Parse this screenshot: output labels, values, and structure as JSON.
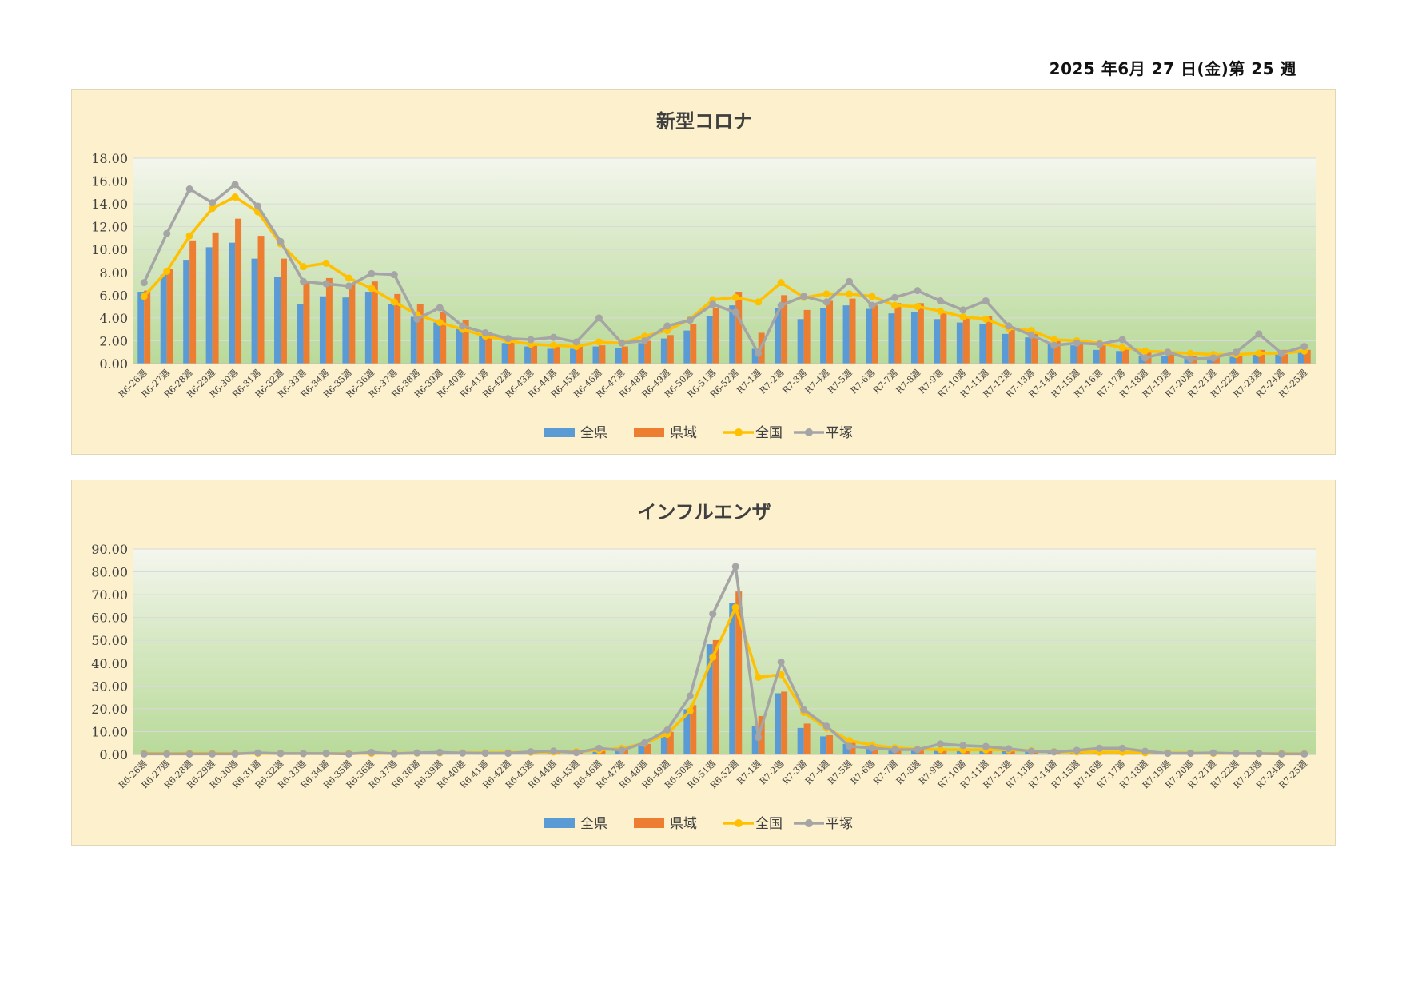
{
  "page": {
    "date": "2025 年6月 27 日(金)第 25 週"
  },
  "colors": {
    "全県": "#5b9bd5",
    "県域": "#ed7d31",
    "全国": "#ffc000",
    "平塚": "#a5a5a5"
  },
  "chart_data": [
    {
      "type": "bar",
      "title": "新型コロナ",
      "categories": [
        "R6-26週",
        "R6-27週",
        "R6-28週",
        "R6-29週",
        "R6-30週",
        "R6-31週",
        "R6-32週",
        "R6-33週",
        "R6-34週",
        "R6-35週",
        "R6-36週",
        "R6-37週",
        "R6-38週",
        "R6-39週",
        "R6-40週",
        "R6-41週",
        "R6-42週",
        "R6-43週",
        "R6-44週",
        "R6-45週",
        "R6-46週",
        "R6-47週",
        "R6-48週",
        "R6-49週",
        "R6-50週",
        "R6-51週",
        "R6-52週",
        "R7-1週",
        "R7-2週",
        "R7-3週",
        "R7-4週",
        "R7-5週",
        "R7-6週",
        "R7-7週",
        "R7-8週",
        "R7-9週",
        "R7-10週",
        "R7-11週",
        "R7-12週",
        "R7-13週",
        "R7-14週",
        "R7-15週",
        "R7-16週",
        "R7-17週",
        "R7-18週",
        "R7-19週",
        "R7-20週",
        "R7-21週",
        "R7-22週",
        "R7-23週",
        "R7-24週",
        "R7-25週"
      ],
      "ylim": [
        0,
        18
      ],
      "yticks": [
        "0.00",
        "2.00",
        "4.00",
        "6.00",
        "8.00",
        "10.00",
        "12.00",
        "14.00",
        "16.00",
        "18.00"
      ],
      "legend": "bottom",
      "grid": true,
      "series": [
        {
          "name": "全県",
          "kind": "bar",
          "values": [
            6.3,
            7.8,
            9.1,
            10.2,
            10.6,
            9.2,
            7.6,
            5.2,
            5.9,
            5.8,
            6.3,
            5.2,
            4.1,
            3.6,
            3.1,
            2.6,
            1.8,
            1.5,
            1.3,
            1.3,
            1.5,
            1.4,
            1.8,
            2.2,
            2.9,
            4.2,
            5.1,
            1.3,
            4.9,
            3.9,
            4.9,
            5.1,
            4.8,
            4.4,
            4.5,
            3.9,
            3.6,
            3.5,
            2.6,
            2.3,
            1.8,
            1.6,
            1.2,
            1.1,
            0.7,
            0.7,
            0.6,
            0.5,
            0.6,
            0.9,
            1.0,
            1.1
          ]
        },
        {
          "name": "県域",
          "kind": "bar",
          "values": [
            6.4,
            8.3,
            10.8,
            11.5,
            12.7,
            11.2,
            9.2,
            7.1,
            7.5,
            7.0,
            7.2,
            6.1,
            5.2,
            4.5,
            3.8,
            2.8,
            2.1,
            1.7,
            1.6,
            1.5,
            1.6,
            1.5,
            2.0,
            2.5,
            3.5,
            4.9,
            6.3,
            2.7,
            6.0,
            4.7,
            5.5,
            5.7,
            5.1,
            5.3,
            5.3,
            4.6,
            4.1,
            4.2,
            3.2,
            2.6,
            2.0,
            1.7,
            1.6,
            1.3,
            1.0,
            1.0,
            0.7,
            0.7,
            0.9,
            1.2,
            1.2,
            1.2
          ]
        },
        {
          "name": "全国",
          "kind": "line",
          "values": [
            5.9,
            8.1,
            11.2,
            13.6,
            14.6,
            13.3,
            10.5,
            8.5,
            8.8,
            7.5,
            6.6,
            5.4,
            4.3,
            3.6,
            3.0,
            2.4,
            2.0,
            1.7,
            1.6,
            1.5,
            1.9,
            1.8,
            2.4,
            2.9,
            3.9,
            5.6,
            5.8,
            5.4,
            7.1,
            5.8,
            6.1,
            6.1,
            5.9,
            5.1,
            5.0,
            4.6,
            4.1,
            3.9,
            3.1,
            2.9,
            2.1,
            2.0,
            1.8,
            1.4,
            1.1,
            1.0,
            0.9,
            0.8,
            0.8,
            0.9,
            0.9,
            1.1
          ]
        },
        {
          "name": "平塚",
          "kind": "line",
          "values": [
            7.1,
            11.4,
            15.3,
            14.1,
            15.7,
            13.8,
            10.7,
            7.2,
            7.0,
            6.8,
            7.9,
            7.8,
            3.9,
            4.9,
            3.3,
            2.7,
            2.2,
            2.1,
            2.3,
            1.9,
            4.0,
            1.8,
            2.0,
            3.3,
            3.8,
            5.2,
            4.5,
            0.9,
            5.1,
            5.9,
            5.4,
            7.2,
            5.1,
            5.8,
            6.4,
            5.5,
            4.7,
            5.5,
            3.3,
            2.5,
            1.6,
            1.8,
            1.7,
            2.1,
            0.5,
            1.0,
            0.4,
            0.5,
            1.0,
            2.6,
            0.9,
            1.5
          ]
        }
      ]
    },
    {
      "type": "bar",
      "title": "インフルエンザ",
      "categories": [
        "R6-26週",
        "R6-27週",
        "R6-28週",
        "R6-29週",
        "R6-30週",
        "R6-31週",
        "R6-32週",
        "R6-33週",
        "R6-34週",
        "R6-35週",
        "R6-36週",
        "R6-37週",
        "R6-38週",
        "R6-39週",
        "R6-40週",
        "R6-41週",
        "R6-42週",
        "R6-43週",
        "R6-44週",
        "R6-45週",
        "R6-46週",
        "R6-47週",
        "R6-48週",
        "R6-49週",
        "R6-50週",
        "R6-51週",
        "R6-52週",
        "R7-1週",
        "R7-2週",
        "R7-3週",
        "R7-4週",
        "R7-5週",
        "R7-6週",
        "R7-7週",
        "R7-8週",
        "R7-9週",
        "R7-10週",
        "R7-11週",
        "R7-12週",
        "R7-13週",
        "R7-14週",
        "R7-15週",
        "R7-16週",
        "R7-17週",
        "R7-18週",
        "R7-19週",
        "R7-20週",
        "R7-21週",
        "R7-22週",
        "R7-23週",
        "R7-24週",
        "R7-25週"
      ],
      "ylim": [
        0,
        90
      ],
      "yticks": [
        "0.00",
        "10.00",
        "20.00",
        "30.00",
        "40.00",
        "50.00",
        "60.00",
        "70.00",
        "80.00",
        "90.00"
      ],
      "legend": "bottom",
      "grid": true,
      "series": [
        {
          "name": "全県",
          "kind": "bar",
          "values": [
            0.3,
            0.3,
            0.3,
            0.3,
            0.3,
            0.4,
            0.3,
            0.3,
            0.3,
            0.3,
            0.4,
            0.4,
            0.5,
            0.6,
            0.5,
            0.5,
            0.6,
            0.8,
            0.9,
            0.9,
            1.5,
            2.0,
            3.9,
            8.5,
            19.8,
            48.3,
            66.2,
            12.3,
            26.8,
            11.6,
            7.9,
            4.6,
            2.8,
            2.0,
            1.8,
            1.7,
            1.6,
            1.7,
            1.6,
            1.2,
            1.0,
            0.9,
            0.9,
            0.8,
            0.6,
            0.5,
            0.5,
            0.4,
            0.4,
            0.3,
            0.3,
            0.3
          ]
        },
        {
          "name": "県域",
          "kind": "bar",
          "values": [
            0.4,
            0.3,
            0.4,
            0.4,
            0.4,
            0.5,
            0.4,
            0.4,
            0.3,
            0.4,
            0.5,
            0.4,
            0.6,
            0.6,
            0.6,
            0.6,
            0.7,
            0.9,
            1.0,
            1.0,
            1.8,
            2.4,
            4.6,
            9.9,
            21.6,
            50.1,
            71.4,
            16.8,
            27.5,
            13.5,
            8.4,
            5.1,
            3.1,
            2.1,
            1.9,
            1.9,
            1.8,
            1.8,
            1.7,
            1.3,
            1.1,
            1.0,
            1.0,
            0.9,
            0.6,
            0.6,
            0.5,
            0.5,
            0.4,
            0.4,
            0.4,
            0.3
          ]
        },
        {
          "name": "全国",
          "kind": "line",
          "values": [
            0.5,
            0.4,
            0.5,
            0.5,
            0.4,
            0.5,
            0.4,
            0.4,
            0.4,
            0.4,
            0.5,
            0.5,
            0.6,
            0.7,
            0.7,
            0.7,
            0.8,
            1.0,
            1.1,
            1.2,
            1.9,
            2.7,
            4.9,
            8.9,
            19.1,
            42.7,
            64.4,
            33.8,
            35.0,
            18.4,
            11.5,
            6.1,
            4.1,
            2.9,
            2.3,
            2.1,
            2.0,
            2.0,
            2.0,
            1.6,
            1.2,
            1.1,
            1.0,
            1.0,
            0.7,
            0.7,
            0.6,
            0.5,
            0.5,
            0.4,
            0.4,
            0.3
          ]
        },
        {
          "name": "平塚",
          "kind": "line",
          "values": [
            0.2,
            0.2,
            0.2,
            0.2,
            0.2,
            0.7,
            0.4,
            0.4,
            0.4,
            0.2,
            0.9,
            0.3,
            0.7,
            0.9,
            0.6,
            0.5,
            0.5,
            1.2,
            1.5,
            0.8,
            2.7,
            1.8,
            5.1,
            10.7,
            25.6,
            61.6,
            82.3,
            7.5,
            40.5,
            19.6,
            12.4,
            3.6,
            2.8,
            2.1,
            2.1,
            4.6,
            3.9,
            3.5,
            2.5,
            1.4,
            1.1,
            1.8,
            2.7,
            2.7,
            1.4,
            0.5,
            0.5,
            0.7,
            0.4,
            0.4,
            0.2,
            0.2
          ]
        }
      ]
    }
  ]
}
